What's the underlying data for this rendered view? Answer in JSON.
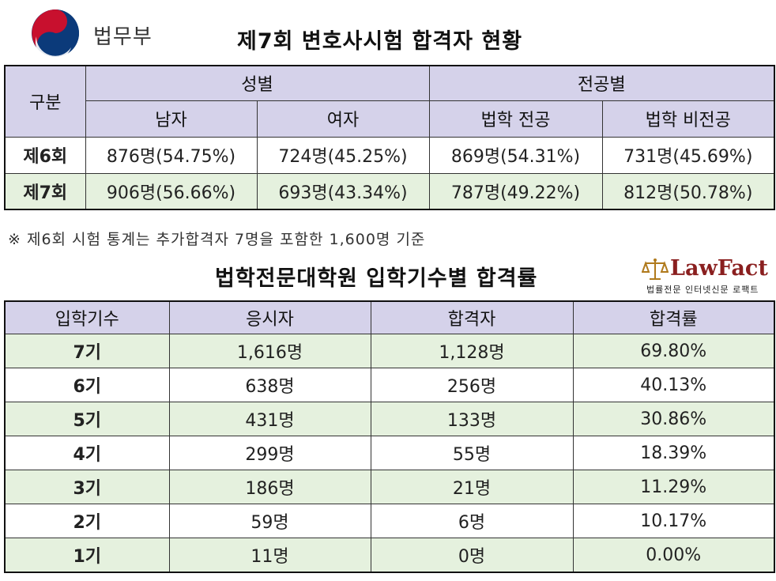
{
  "header": {
    "ministry": "법무부",
    "title": "제7회 변호사시험 합격자 현황"
  },
  "table1": {
    "corner": "구분",
    "group_gender": "성별",
    "group_major": "전공별",
    "sub_headers": [
      "남자",
      "여자",
      "법학 전공",
      "법학 비전공"
    ],
    "rows": [
      {
        "label": "제6회",
        "cells": [
          "876명(54.75%)",
          "724명(45.25%)",
          "869명(54.31%)",
          "731명(45.69%)"
        ]
      },
      {
        "label": "제7회",
        "cells": [
          "906명(56.66%)",
          "693명(43.34%)",
          "787명(49.22%)",
          "812명(50.78%)"
        ]
      }
    ]
  },
  "note": "※ 제6회 시험 통계는 추가합격자 7명을 포함한 1,600명 기준",
  "title2": "법학전문대학원 입학기수별 합격률",
  "lawfact": {
    "logo_text": "LawFact",
    "sub_text": "법률전문 인터넷신문 로팩트"
  },
  "table2": {
    "headers": [
      "입학기수",
      "응시자",
      "합격자",
      "합격률"
    ],
    "rows": [
      [
        "7기",
        "1,616명",
        "1,128명",
        "69.80%"
      ],
      [
        "6기",
        "638명",
        "256명",
        "40.13%"
      ],
      [
        "5기",
        "431명",
        "133명",
        "30.86%"
      ],
      [
        "4기",
        "299명",
        "55명",
        "18.39%"
      ],
      [
        "3기",
        "186명",
        "21명",
        "11.29%"
      ],
      [
        "2기",
        "59명",
        "6명",
        "10.17%"
      ],
      [
        "1기",
        "11명",
        "0명",
        "0.00%"
      ]
    ]
  },
  "colors": {
    "header_bg": "#d5d2ea",
    "row_green": "#e5f1de",
    "emblem_red": "#c8102e",
    "emblem_blue": "#0b3a7a",
    "lawfact_red": "#8a1f1f"
  }
}
